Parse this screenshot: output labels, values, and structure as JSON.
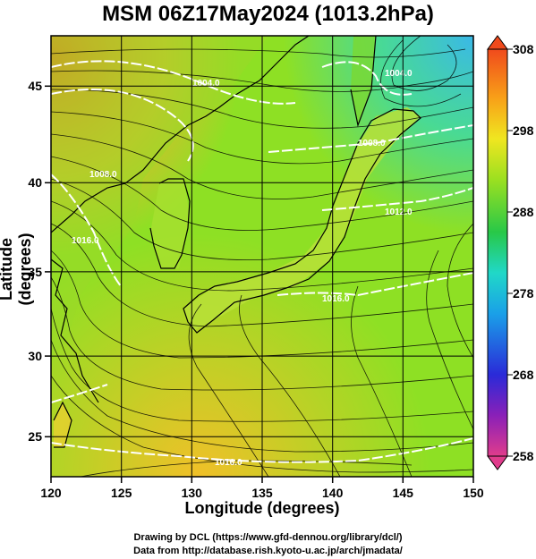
{
  "title": "MSM 06Z17May2024 (1013.2hPa)",
  "x_axis": {
    "label": "Longitude (degrees)",
    "ticks": [
      "120",
      "125",
      "130",
      "135",
      "140",
      "145",
      "150"
    ],
    "range": [
      120,
      150
    ]
  },
  "y_axis": {
    "label": "Latitude  (degrees)",
    "ticks": [
      "25",
      "30",
      "35",
      "40",
      "45"
    ],
    "range": [
      22.4,
      47.6
    ]
  },
  "colorbar": {
    "ticks": [
      "308",
      "298",
      "288",
      "278",
      "268",
      "258"
    ],
    "range": [
      258,
      308
    ],
    "colors": [
      "#e03c8c",
      "#7c1fb0",
      "#2a2ad8",
      "#1aa0e8",
      "#20d8c8",
      "#28c848",
      "#9ce020",
      "#f0e620",
      "#f8a018",
      "#f04a1c"
    ]
  },
  "contour_labels": [
    "1004.0",
    "1004.0",
    "1008.0",
    "1008.0",
    "1012.0",
    "1016.0",
    "1016.0",
    "1016.0"
  ],
  "credits": {
    "line1": "Drawing by DCL (https://www.gfd-dennou.org/library/dcl/)",
    "line2": "Data from http://database.rish.kyoto-u.ac.jp/arch/jmadata/"
  }
}
